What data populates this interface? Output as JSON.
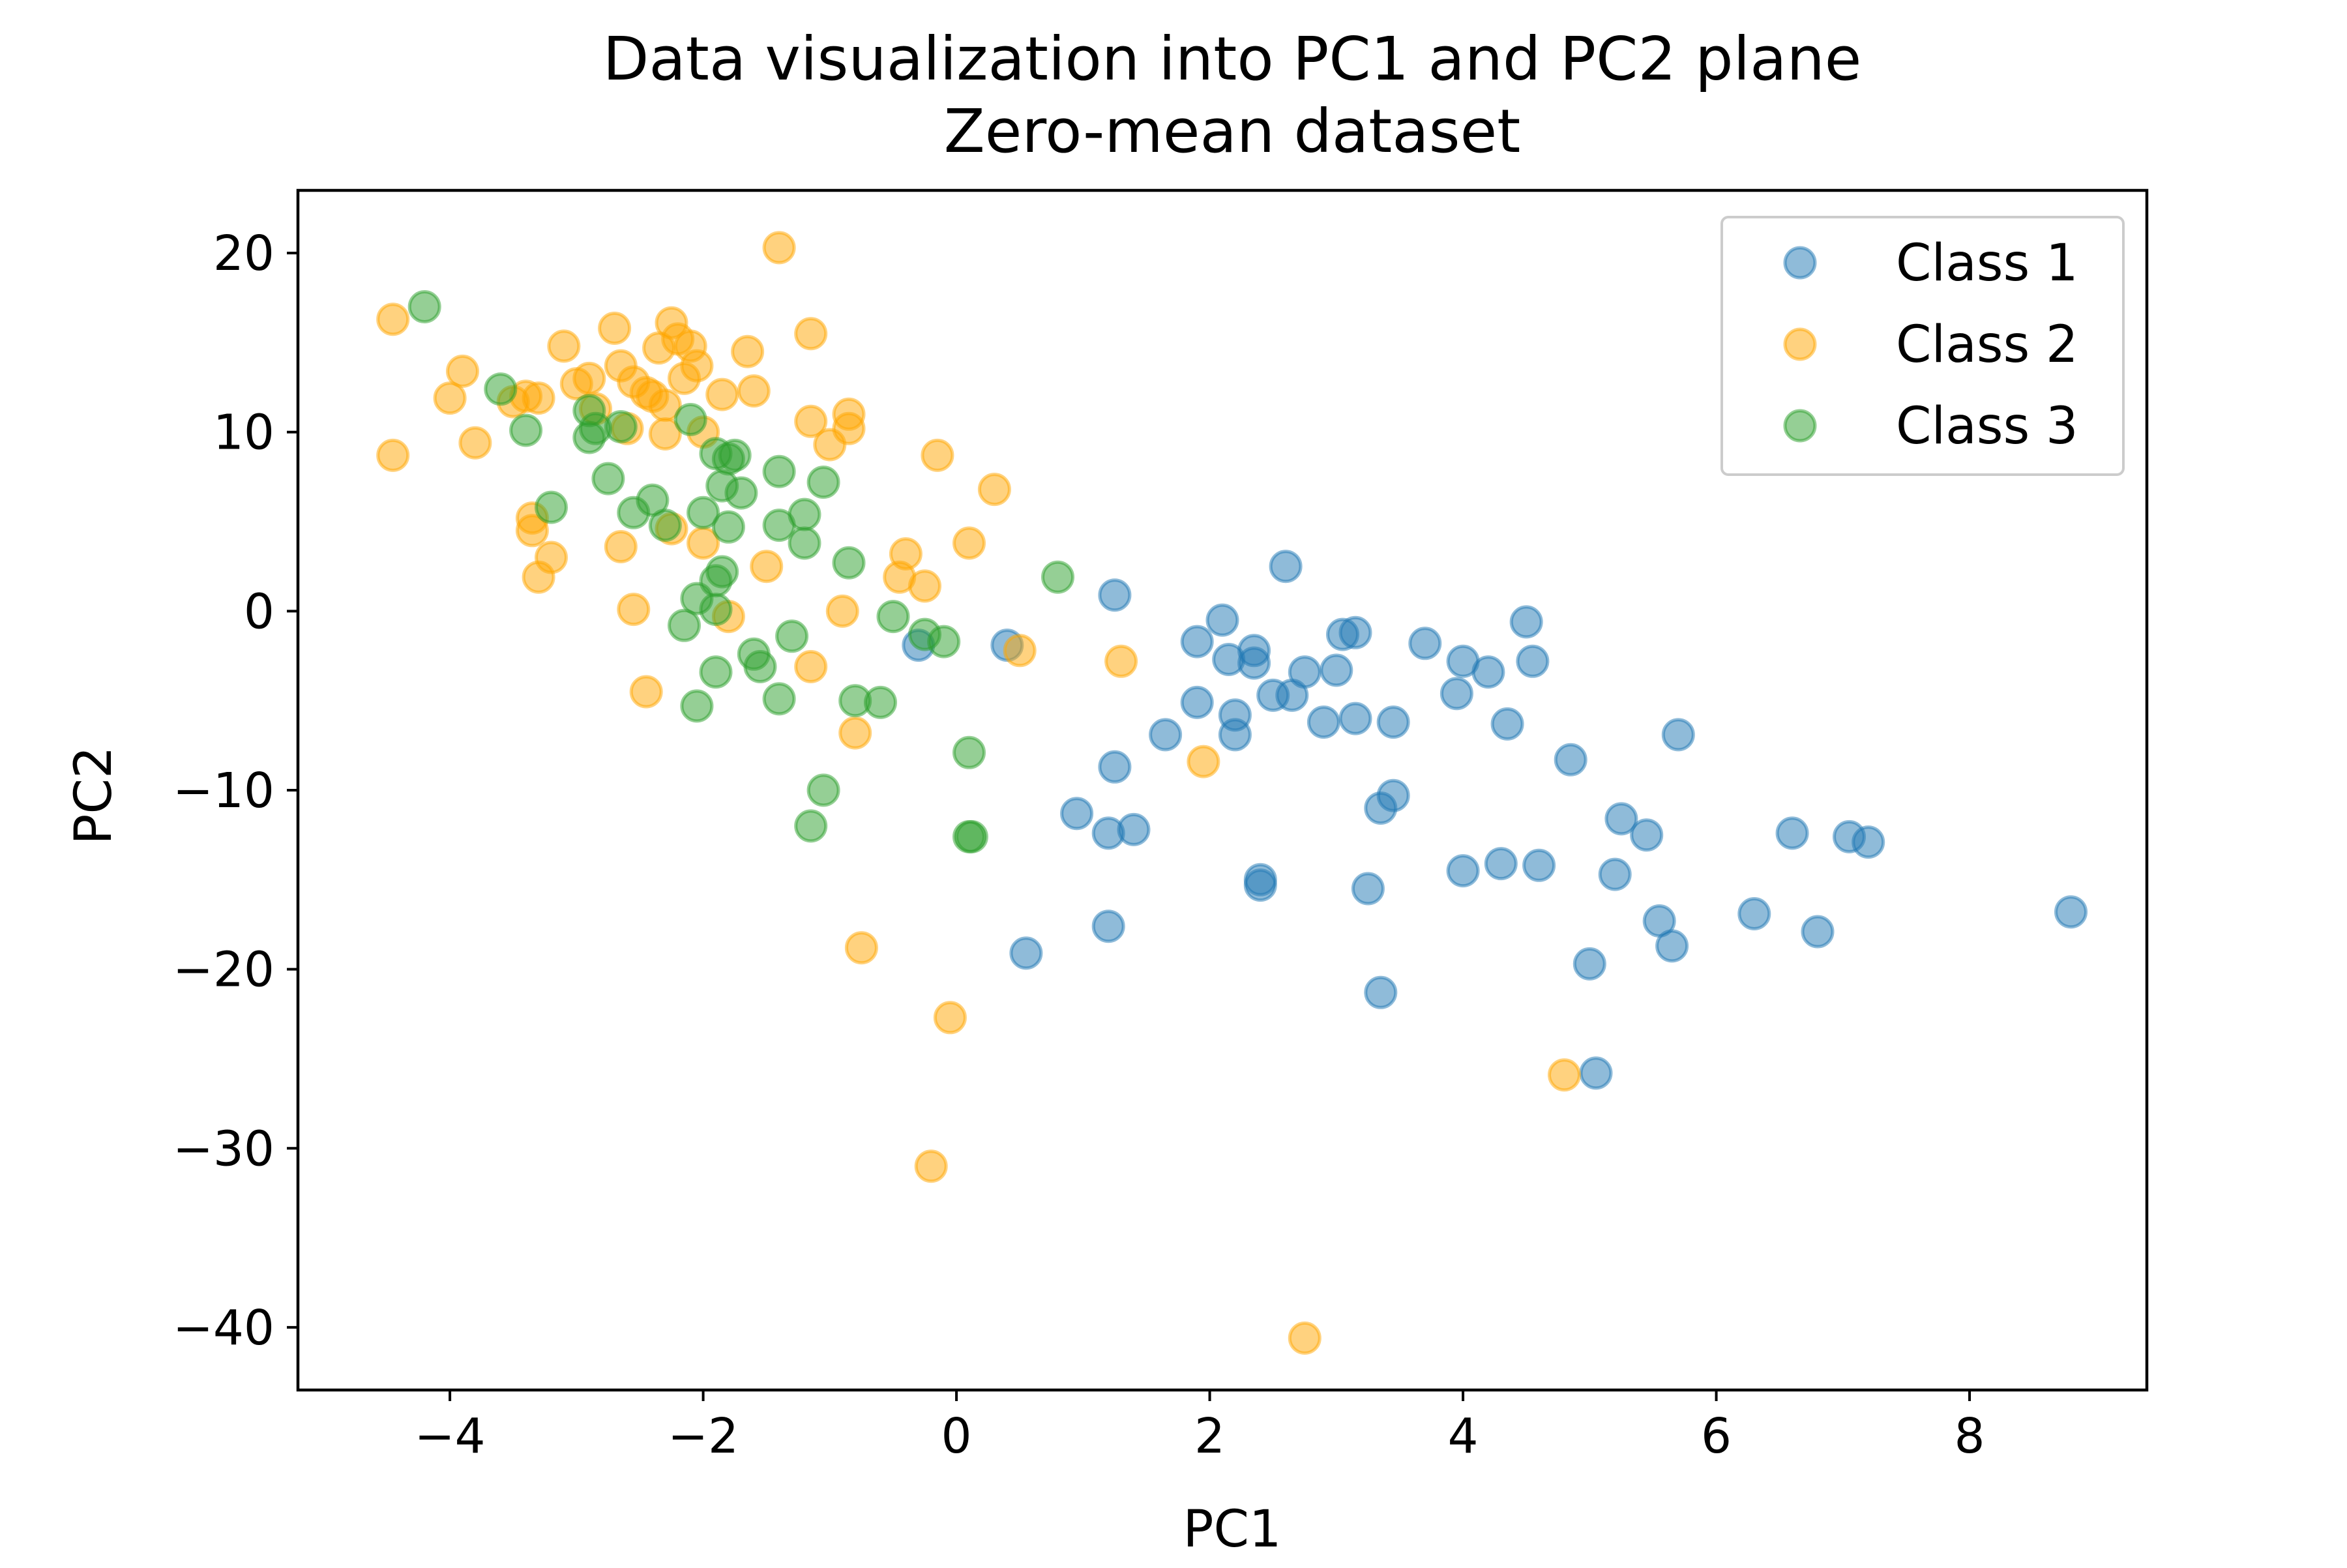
{
  "chart_data": {
    "type": "scatter",
    "title": "Data visualization into PC1 and PC2 plane",
    "subtitle": "Zero-mean dataset",
    "xlabel": "PC1",
    "ylabel": "PC2",
    "xlim": [
      -5.2,
      9.4
    ],
    "ylim": [
      -43.5,
      23.5
    ],
    "xticks": [
      -4,
      -2,
      0,
      2,
      4,
      6,
      8
    ],
    "xtick_labels": [
      "−4",
      "−2",
      "0",
      "2",
      "4",
      "6",
      "8"
    ],
    "yticks": [
      20,
      10,
      0,
      -10,
      -20,
      -30,
      -40
    ],
    "ytick_labels": [
      "20",
      "10",
      "0",
      "−10",
      "−20",
      "−30",
      "−40"
    ],
    "grid": false,
    "legend_position": "top-right",
    "marker_alpha": 0.5,
    "series": [
      {
        "name": "Class 1",
        "color": "#1f77b4",
        "points": [
          [
            -0.3,
            -1.9
          ],
          [
            0.4,
            -1.9
          ],
          [
            1.25,
            0.9
          ],
          [
            1.9,
            -1.7
          ],
          [
            2.1,
            -0.5
          ],
          [
            2.15,
            -2.7
          ],
          [
            2.35,
            -2.2
          ],
          [
            2.35,
            -2.9
          ],
          [
            2.6,
            2.5
          ],
          [
            2.75,
            -3.4
          ],
          [
            3.0,
            -3.3
          ],
          [
            3.05,
            -1.3
          ],
          [
            3.15,
            -1.2
          ],
          [
            3.7,
            -1.8
          ],
          [
            4.0,
            -2.8
          ],
          [
            4.2,
            -3.4
          ],
          [
            4.5,
            -0.6
          ],
          [
            4.55,
            -2.8
          ],
          [
            1.9,
            -5.1
          ],
          [
            2.2,
            -5.8
          ],
          [
            2.2,
            -6.9
          ],
          [
            2.5,
            -4.7
          ],
          [
            2.65,
            -4.7
          ],
          [
            2.9,
            -6.2
          ],
          [
            3.15,
            -6.0
          ],
          [
            3.45,
            -6.2
          ],
          [
            3.95,
            -4.6
          ],
          [
            4.35,
            -6.3
          ],
          [
            4.85,
            -8.3
          ],
          [
            5.7,
            -6.9
          ],
          [
            1.65,
            -6.9
          ],
          [
            1.25,
            -8.7
          ],
          [
            0.95,
            -11.3
          ],
          [
            1.2,
            -12.4
          ],
          [
            1.4,
            -12.2
          ],
          [
            3.35,
            -11.0
          ],
          [
            3.45,
            -10.3
          ],
          [
            5.25,
            -11.6
          ],
          [
            5.45,
            -12.5
          ],
          [
            6.6,
            -12.4
          ],
          [
            7.05,
            -12.6
          ],
          [
            7.2,
            -12.9
          ],
          [
            2.4,
            -15.0
          ],
          [
            2.4,
            -15.3
          ],
          [
            3.25,
            -15.5
          ],
          [
            4.0,
            -14.5
          ],
          [
            4.3,
            -14.1
          ],
          [
            4.6,
            -14.2
          ],
          [
            5.2,
            -14.7
          ],
          [
            5.55,
            -17.3
          ],
          [
            5.65,
            -18.7
          ],
          [
            6.3,
            -16.9
          ],
          [
            6.8,
            -17.9
          ],
          [
            8.8,
            -16.8
          ],
          [
            1.2,
            -17.6
          ],
          [
            0.55,
            -19.1
          ],
          [
            3.35,
            -21.3
          ],
          [
            5.0,
            -19.7
          ],
          [
            5.05,
            -25.8
          ]
        ]
      },
      {
        "name": "Class 2",
        "color": "#ffa500",
        "points": [
          [
            -4.45,
            16.3
          ],
          [
            -4.45,
            8.7
          ],
          [
            -4.0,
            11.9
          ],
          [
            -3.9,
            13.4
          ],
          [
            -3.8,
            9.4
          ],
          [
            -3.5,
            11.7
          ],
          [
            -3.4,
            12.0
          ],
          [
            -3.3,
            11.9
          ],
          [
            -3.1,
            14.8
          ],
          [
            -3.0,
            12.7
          ],
          [
            -2.9,
            13.0
          ],
          [
            -2.85,
            11.3
          ],
          [
            -2.7,
            15.8
          ],
          [
            -2.65,
            13.7
          ],
          [
            -2.6,
            10.2
          ],
          [
            -2.55,
            12.8
          ],
          [
            -2.45,
            12.2
          ],
          [
            -2.4,
            12.0
          ],
          [
            -2.35,
            14.7
          ],
          [
            -2.3,
            11.5
          ],
          [
            -2.3,
            9.9
          ],
          [
            -2.25,
            16.1
          ],
          [
            -2.2,
            15.2
          ],
          [
            -2.15,
            13.0
          ],
          [
            -2.1,
            14.8
          ],
          [
            -2.05,
            13.7
          ],
          [
            -2.0,
            10.0
          ],
          [
            -1.85,
            12.1
          ],
          [
            -1.65,
            14.5
          ],
          [
            -1.6,
            12.3
          ],
          [
            -1.4,
            20.3
          ],
          [
            -1.15,
            15.5
          ],
          [
            -1.15,
            10.6
          ],
          [
            -1.0,
            9.3
          ],
          [
            -0.85,
            11.0
          ],
          [
            -0.85,
            10.2
          ],
          [
            -3.35,
            5.2
          ],
          [
            -3.35,
            4.5
          ],
          [
            -3.3,
            1.9
          ],
          [
            -3.2,
            3.0
          ],
          [
            -2.65,
            3.6
          ],
          [
            -2.25,
            4.6
          ],
          [
            -2.0,
            3.8
          ],
          [
            -1.5,
            2.5
          ],
          [
            -1.8,
            -0.3
          ],
          [
            -2.55,
            0.1
          ],
          [
            -2.45,
            -4.5
          ],
          [
            -1.15,
            -3.1
          ],
          [
            -0.9,
            0.0
          ],
          [
            -0.45,
            1.9
          ],
          [
            -0.4,
            3.2
          ],
          [
            -0.25,
            1.4
          ],
          [
            -0.15,
            8.7
          ],
          [
            0.1,
            3.8
          ],
          [
            0.3,
            6.8
          ],
          [
            0.5,
            -2.2
          ],
          [
            1.3,
            -2.8
          ],
          [
            -0.8,
            -6.8
          ],
          [
            1.95,
            -8.4
          ],
          [
            -0.75,
            -18.8
          ],
          [
            -0.05,
            -22.7
          ],
          [
            -0.2,
            -31.0
          ],
          [
            4.8,
            -25.9
          ],
          [
            2.75,
            -40.6
          ]
        ]
      },
      {
        "name": "Class 3",
        "color": "#2ca02c",
        "points": [
          [
            -4.2,
            17.0
          ],
          [
            -3.6,
            12.4
          ],
          [
            -3.4,
            10.1
          ],
          [
            -3.2,
            5.8
          ],
          [
            -2.9,
            11.2
          ],
          [
            -2.9,
            9.7
          ],
          [
            -2.85,
            10.2
          ],
          [
            -2.75,
            7.4
          ],
          [
            -2.65,
            10.3
          ],
          [
            -2.55,
            5.5
          ],
          [
            -2.4,
            6.2
          ],
          [
            -2.3,
            4.8
          ],
          [
            -2.1,
            10.7
          ],
          [
            -2.0,
            5.5
          ],
          [
            -1.9,
            8.8
          ],
          [
            -1.85,
            7.0
          ],
          [
            -1.8,
            8.5
          ],
          [
            -1.75,
            8.7
          ],
          [
            -1.7,
            6.6
          ],
          [
            -1.8,
            4.7
          ],
          [
            -1.4,
            7.8
          ],
          [
            -1.4,
            4.8
          ],
          [
            -1.2,
            5.4
          ],
          [
            -1.2,
            3.8
          ],
          [
            -1.05,
            7.2
          ],
          [
            -0.85,
            2.7
          ],
          [
            -2.05,
            0.7
          ],
          [
            -1.9,
            1.7
          ],
          [
            -1.85,
            2.2
          ],
          [
            -1.9,
            0.1
          ],
          [
            -2.15,
            -0.8
          ],
          [
            -0.5,
            -0.3
          ],
          [
            -0.25,
            -1.3
          ],
          [
            -0.1,
            -1.7
          ],
          [
            0.8,
            1.9
          ],
          [
            -1.3,
            -1.4
          ],
          [
            -1.6,
            -2.4
          ],
          [
            -1.55,
            -3.1
          ],
          [
            -1.9,
            -3.4
          ],
          [
            -2.05,
            -5.3
          ],
          [
            -1.4,
            -4.9
          ],
          [
            -0.8,
            -5.0
          ],
          [
            -0.6,
            -5.1
          ],
          [
            0.1,
            -7.9
          ],
          [
            -1.05,
            -10.0
          ],
          [
            -1.15,
            -12.0
          ],
          [
            0.1,
            -12.6
          ],
          [
            0.12,
            -12.6
          ]
        ]
      }
    ]
  }
}
